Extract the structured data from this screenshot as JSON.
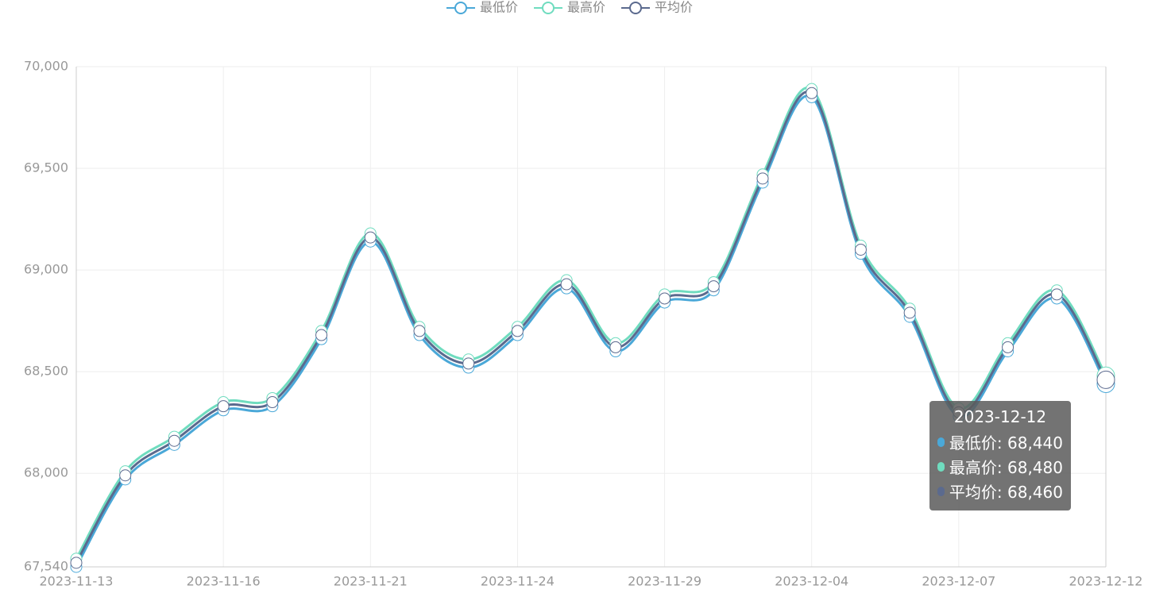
{
  "chart_data": {
    "type": "line",
    "categories": [
      "2023-11-13",
      null,
      null,
      "2023-11-16",
      null,
      null,
      "2023-11-21",
      null,
      null,
      "2023-11-24",
      null,
      null,
      "2023-11-29",
      null,
      null,
      "2023-12-04",
      null,
      null,
      "2023-12-07",
      null,
      null,
      "2023-12-12"
    ],
    "series": [
      {
        "name": "最低价",
        "color": "#4aa8d8",
        "values": [
          67540,
          67970,
          68140,
          68310,
          68330,
          68660,
          69140,
          68680,
          68520,
          68680,
          68910,
          68600,
          68840,
          68900,
          69430,
          69850,
          69080,
          68770,
          68280,
          68600,
          68860,
          68440
        ]
      },
      {
        "name": "最高价",
        "color": "#6fdcbf",
        "values": [
          67580,
          68010,
          68180,
          68350,
          68370,
          68700,
          69180,
          68720,
          68560,
          68720,
          68950,
          68640,
          68880,
          68940,
          69470,
          69890,
          69120,
          68810,
          68320,
          68640,
          68900,
          68480
        ]
      },
      {
        "name": "平均价",
        "color": "#5b6a8e",
        "values": [
          67560,
          67990,
          68160,
          68330,
          68350,
          68680,
          69160,
          68700,
          68540,
          68700,
          68930,
          68620,
          68860,
          68920,
          69450,
          69870,
          69100,
          68790,
          68300,
          68620,
          68880,
          68460
        ]
      }
    ],
    "ylim": [
      67540,
      70000
    ],
    "yticks": [
      {
        "value": 67540,
        "label": "67,540"
      },
      {
        "value": 68000,
        "label": "68,000"
      },
      {
        "value": 68500,
        "label": "68,500"
      },
      {
        "value": 69000,
        "label": "69,000"
      },
      {
        "value": 69500,
        "label": "69,500"
      },
      {
        "value": 70000,
        "label": "70,000"
      }
    ],
    "grid": true,
    "smooth": true,
    "legend": "top",
    "tooltip": {
      "title": "2023-12-12",
      "rows": [
        "最低价: 68,440",
        "最高价: 68,480",
        "平均价: 68,460"
      ]
    }
  }
}
